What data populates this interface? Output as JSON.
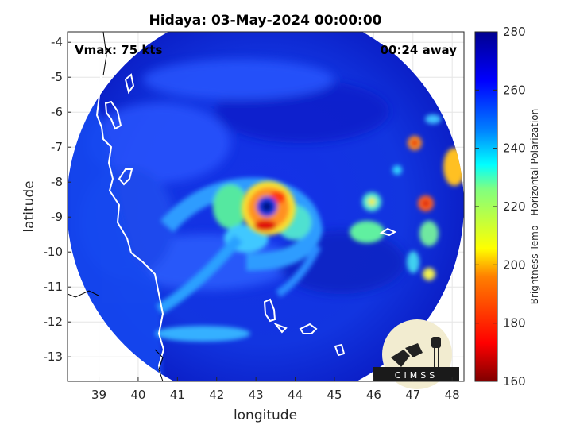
{
  "chart_data": {
    "type": "heatmap",
    "title": "Hidaya: 03-May-2024 00:00:00",
    "annotations": {
      "vmax": "Vmax: 75 kts",
      "time_away": "00:24 away"
    },
    "xlabel": "longitude",
    "ylabel": "latitude",
    "xlim": [
      38.2,
      48.3
    ],
    "ylim": [
      -13.7,
      -3.7
    ],
    "x_ticks": [
      "39",
      "40",
      "41",
      "42",
      "43",
      "44",
      "45",
      "46",
      "47",
      "48"
    ],
    "y_ticks": [
      "-4",
      "-5",
      "-6",
      "-7",
      "-8",
      "-9",
      "-10",
      "-11",
      "-12",
      "-13"
    ],
    "grid": true,
    "swath_center": [
      43.2,
      -8.7
    ],
    "storm_center": [
      43.3,
      -8.9
    ],
    "colorbar": {
      "label": "Brightness Temp - Horizontal Polarization",
      "range": [
        160,
        280
      ],
      "ticks": [
        "280",
        "260",
        "240",
        "220",
        "200",
        "180",
        "160"
      ],
      "colormap": "jet",
      "colors": [
        "#7f0000",
        "#ff0000",
        "#ff8000",
        "#ffff00",
        "#80ff80",
        "#00ffff",
        "#0080ff",
        "#0000ff",
        "#00008f"
      ]
    },
    "logo": "CIMSS"
  }
}
